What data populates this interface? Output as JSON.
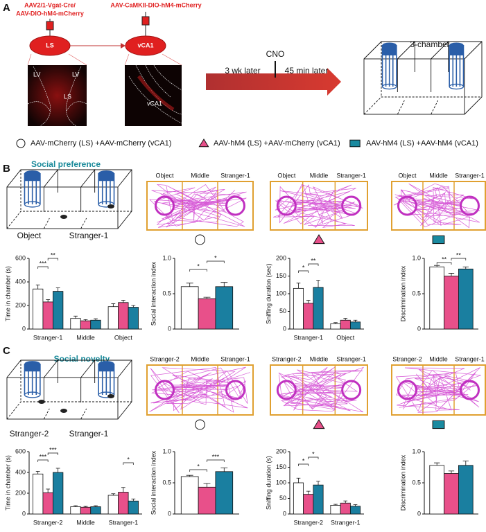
{
  "figure": {
    "panel_a": {
      "label": "A",
      "virus_ls": [
        "AAV2/1-Vgat-Cre/",
        "AAV-DIO-hM4-mCherry"
      ],
      "virus_vca1": "AAV-CaMKII-DIO-hM4-mCherry",
      "region_ls": "LS",
      "region_vca1": "vCA1",
      "image_ls_labels": [
        "LV",
        "LV",
        "LS"
      ],
      "image_vca1_label": "vCA1",
      "cno": "CNO",
      "delay_1": "3 wk later",
      "delay_2": "45 min later",
      "apparatus": "3-chamber"
    },
    "legend": [
      {
        "label": "AAV-mCherry (LS) +AAV-mCherry (vCA1)",
        "color": "#ffffff",
        "marker": "circle"
      },
      {
        "label": "AAV-hM4 (LS) +AAV-mCherry (vCA1)",
        "color": "#e8508a",
        "marker": "triangle"
      },
      {
        "label": "AAV-hM4 (LS) +AAV-hM4 (vCA1)",
        "color": "#1a8aa0",
        "marker": "square"
      }
    ],
    "panel_b": {
      "label": "B",
      "title": "Social preference",
      "chamber_labels": [
        "Object",
        "Stranger-1"
      ],
      "track_headers": [
        "Object",
        "Middle",
        "Stranger-1"
      ]
    },
    "panel_c": {
      "label": "C",
      "title": "Social novelty",
      "chamber_labels": [
        "Stranger-2",
        "Stranger-1"
      ],
      "track_headers": [
        "Stranger-2",
        "Middle",
        "Stranger-1"
      ]
    }
  },
  "chart_data": [
    {
      "type": "bar",
      "ylabel": "Time in chamber (s)",
      "categories": [
        "Stranger-1",
        "Middle",
        "Object"
      ],
      "ylim": [
        0,
        600
      ],
      "yticks": [
        0,
        200,
        400,
        600
      ],
      "series": [
        {
          "color": "#ffffff",
          "values": [
            340,
            90,
            190
          ],
          "errors": [
            35,
            20,
            25
          ]
        },
        {
          "color": "#e8508a",
          "values": [
            230,
            70,
            225
          ],
          "errors": [
            20,
            10,
            20
          ]
        },
        {
          "color": "#1a7fa0",
          "values": [
            320,
            75,
            185
          ],
          "errors": [
            30,
            12,
            15
          ]
        }
      ],
      "annotations": [
        "***",
        "**"
      ]
    },
    {
      "type": "bar",
      "ylabel": "Social interaction index",
      "categories": [
        null
      ],
      "ylim": [
        0,
        1
      ],
      "yticks": [
        0,
        0.5,
        {
          "value": 1,
          "label": "1.0"
        }
      ],
      "series": [
        {
          "color": "#ffffff",
          "values": [
            0.6
          ],
          "errors": [
            0.05
          ]
        },
        {
          "color": "#e8508a",
          "values": [
            0.43
          ],
          "errors": [
            0.02
          ]
        },
        {
          "color": "#1a7fa0",
          "values": [
            0.6
          ],
          "errors": [
            0.06
          ]
        }
      ],
      "annotations": [
        "*",
        "*"
      ]
    },
    {
      "type": "bar",
      "ylabel": "Sniffing duration (sec)",
      "categories": [
        "Stranger-1",
        "Object"
      ],
      "ylim": [
        0,
        200
      ],
      "yticks": [
        0,
        50,
        100,
        150,
        200
      ],
      "series": [
        {
          "color": "#ffffff",
          "values": [
            115,
            15
          ],
          "errors": [
            15,
            3
          ]
        },
        {
          "color": "#e8508a",
          "values": [
            73,
            25
          ],
          "errors": [
            8,
            5
          ]
        },
        {
          "color": "#1a7fa0",
          "values": [
            118,
            20
          ],
          "errors": [
            20,
            5
          ]
        }
      ],
      "annotations": [
        "*",
        "**"
      ]
    },
    {
      "type": "bar",
      "ylabel": "Discrimination index",
      "categories": [
        null
      ],
      "ylim": [
        0,
        1
      ],
      "yticks": [
        0,
        0.5,
        {
          "value": 1,
          "label": "1.0"
        }
      ],
      "series": [
        {
          "color": "#ffffff",
          "values": [
            0.88
          ],
          "errors": [
            0.02
          ]
        },
        {
          "color": "#e8508a",
          "values": [
            0.75
          ],
          "errors": [
            0.04
          ]
        },
        {
          "color": "#1a7fa0",
          "values": [
            0.85
          ],
          "errors": [
            0.03
          ]
        }
      ],
      "annotations": [
        "**",
        "**"
      ]
    },
    {
      "type": "bar",
      "ylabel": "Time in chamber (s)",
      "categories": [
        "Stranger-2",
        "Middle",
        "Stranger-1"
      ],
      "ylim": [
        0,
        600
      ],
      "yticks": [
        0,
        200,
        400,
        600
      ],
      "series": [
        {
          "color": "#ffffff",
          "values": [
            385,
            70,
            180
          ],
          "errors": [
            25,
            10,
            15
          ]
        },
        {
          "color": "#e8508a",
          "values": [
            205,
            65,
            210
          ],
          "errors": [
            35,
            8,
            45
          ]
        },
        {
          "color": "#1a7fa0",
          "values": [
            400,
            70,
            125
          ],
          "errors": [
            40,
            10,
            20
          ]
        }
      ],
      "annotations": [
        "***",
        "***",
        "*"
      ]
    },
    {
      "type": "bar",
      "ylabel": "Social interaction index",
      "categories": [
        null
      ],
      "ylim": [
        0,
        1
      ],
      "yticks": [
        0,
        0.5,
        {
          "value": 1,
          "label": "1.0"
        }
      ],
      "series": [
        {
          "color": "#ffffff",
          "values": [
            0.6
          ],
          "errors": [
            0.02
          ]
        },
        {
          "color": "#e8508a",
          "values": [
            0.43
          ],
          "errors": [
            0.06
          ]
        },
        {
          "color": "#1a7fa0",
          "values": [
            0.68
          ],
          "errors": [
            0.06
          ]
        }
      ],
      "annotations": [
        "*",
        "***"
      ]
    },
    {
      "type": "bar",
      "ylabel": "Sniffing duration (s)",
      "categories": [
        "Stranger-2",
        "Stranger-1"
      ],
      "ylim": [
        0,
        200
      ],
      "yticks": [
        0,
        50,
        100,
        150,
        200
      ],
      "series": [
        {
          "color": "#ffffff",
          "values": [
            100,
            28
          ],
          "errors": [
            15,
            3
          ]
        },
        {
          "color": "#e8508a",
          "values": [
            63,
            35
          ],
          "errors": [
            10,
            7
          ]
        },
        {
          "color": "#1a7fa0",
          "values": [
            93,
            25
          ],
          "errors": [
            12,
            5
          ]
        }
      ],
      "annotations": [
        "*",
        "*"
      ]
    },
    {
      "type": "bar",
      "ylabel": "Discrimination index",
      "categories": [
        null
      ],
      "ylim": [
        0,
        1
      ],
      "yticks": [
        0,
        0.5,
        {
          "value": 1,
          "label": "1.0"
        }
      ],
      "series": [
        {
          "color": "#ffffff",
          "values": [
            0.78
          ],
          "errors": [
            0.04
          ]
        },
        {
          "color": "#e8508a",
          "values": [
            0.65
          ],
          "errors": [
            0.04
          ]
        },
        {
          "color": "#1a7fa0",
          "values": [
            0.78
          ],
          "errors": [
            0.07
          ]
        }
      ]
    }
  ]
}
